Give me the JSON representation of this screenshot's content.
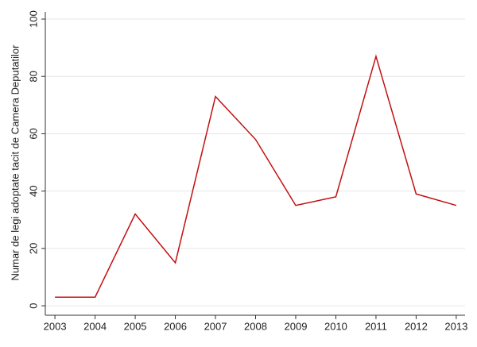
{
  "chart_data": {
    "type": "line",
    "y_label": "Numar de legi adoptate tacit de Camera Deputatilor",
    "x": [
      2003,
      2004,
      2005,
      2006,
      2007,
      2008,
      2009,
      2010,
      2011,
      2012,
      2013
    ],
    "series": [
      {
        "color": "#c41010",
        "values": [
          3,
          3,
          32,
          15,
          73,
          58,
          35,
          38,
          87,
          39,
          35
        ]
      }
    ],
    "xlim": [
      2002.76,
      2013.22
    ],
    "xticks": [
      2003,
      2004,
      2005,
      2006,
      2007,
      2008,
      2009,
      2010,
      2011,
      2012,
      2013
    ],
    "ylim": [
      -3.3,
      102.5
    ],
    "yticks": [
      0,
      20,
      40,
      60,
      80,
      100
    ],
    "grid": true
  }
}
